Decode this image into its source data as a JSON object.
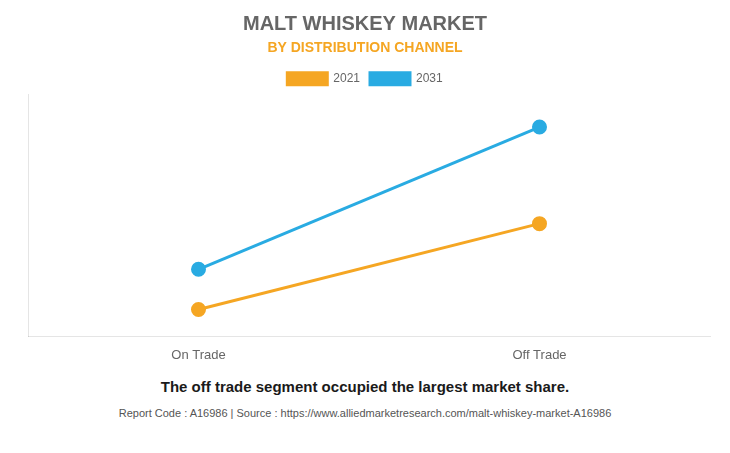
{
  "chart_data": {
    "type": "line",
    "title": "MALT WHISKEY MARKET",
    "subtitle": "BY DISTRIBUTION CHANNEL",
    "categories": [
      "On Trade",
      "Off Trade"
    ],
    "series": [
      {
        "name": "2021",
        "color": "#F5A623",
        "values": [
          1.0,
          4.2
        ]
      },
      {
        "name": "2031",
        "color": "#29ABE2",
        "values": [
          2.5,
          7.8
        ]
      }
    ],
    "ylim": [
      0,
      9
    ],
    "yticks": [],
    "grid": false,
    "legend": "top",
    "tick_labels": "x",
    "marker": "circle",
    "annotations": [
      "The off trade segment occupied the largest market share.",
      "Report Code : A16986  |  Source : https://www.alliedmarketresearch.com/malt-whiskey-market-A16986"
    ]
  }
}
